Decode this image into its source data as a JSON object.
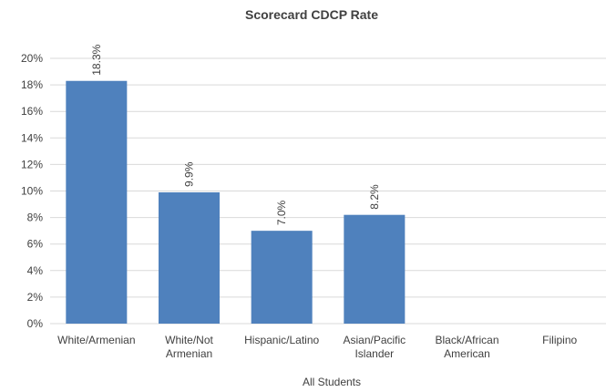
{
  "chart_data": {
    "type": "bar",
    "title": "Scorecard CDCP Rate",
    "xlabel": "All Students",
    "ylabel": "",
    "ylim": [
      0,
      20
    ],
    "yticks": [
      "0%",
      "2%",
      "4%",
      "6%",
      "8%",
      "10%",
      "12%",
      "14%",
      "16%",
      "18%",
      "20%"
    ],
    "grid": true,
    "bar_color": "#4F81BD",
    "categories": [
      [
        "White/Armenian"
      ],
      [
        "White/Not",
        "Armenian"
      ],
      [
        "Hispanic/Latino"
      ],
      [
        "Asian/Pacific",
        "Islander"
      ],
      [
        "Black/African",
        "American"
      ],
      [
        "Filipino"
      ]
    ],
    "values": [
      18.3,
      9.9,
      7.0,
      8.2,
      null,
      null
    ],
    "data_labels": [
      "18.3%",
      "9.9%",
      "7.0%",
      "8.2%",
      "",
      ""
    ]
  }
}
